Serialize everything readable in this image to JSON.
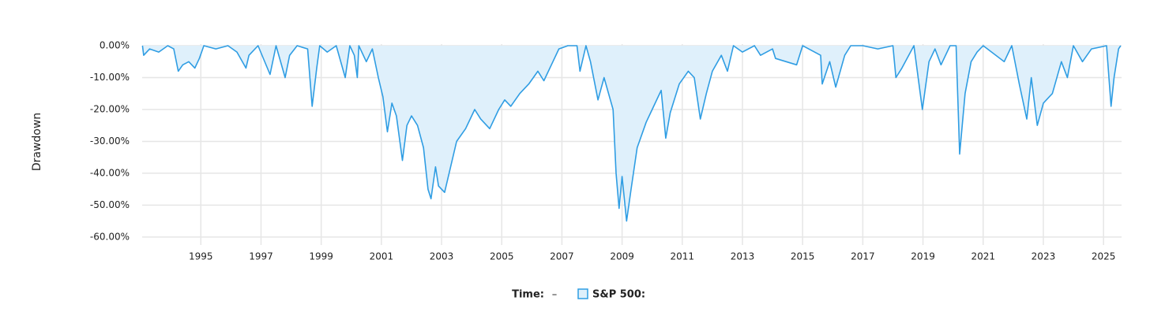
{
  "chart_data": {
    "type": "area",
    "y_label": "Drawdown",
    "legend_x_label": "Time:",
    "legend_x_value": "–",
    "grid": true,
    "xlim": [
      1993.05,
      2025.6
    ],
    "xticks": [
      1995,
      1997,
      1999,
      2001,
      2003,
      2005,
      2007,
      2009,
      2011,
      2013,
      2015,
      2017,
      2019,
      2021,
      2023,
      2025
    ],
    "ylim": [
      -62.5,
      0.5
    ],
    "yticks": [
      {
        "value": 0,
        "label": "0.00%"
      },
      {
        "value": -10,
        "label": "-10.00%"
      },
      {
        "value": -20,
        "label": "-20.00%"
      },
      {
        "value": -30,
        "label": "-30.00%"
      },
      {
        "value": -40,
        "label": "-40.00%"
      },
      {
        "value": -50,
        "label": "-50.00%"
      },
      {
        "value": -60,
        "label": "-60.00%"
      }
    ],
    "x": [
      1993.06,
      1993.1,
      1993.3,
      1993.6,
      1993.9,
      1994.1,
      1994.25,
      1994.4,
      1994.6,
      1994.8,
      1994.95,
      1995.1,
      1995.5,
      1995.9,
      1996.2,
      1996.5,
      1996.6,
      1996.9,
      1997.3,
      1997.5,
      1997.8,
      1997.95,
      1998.2,
      1998.55,
      1998.7,
      1998.85,
      1998.95,
      1999.2,
      1999.5,
      1999.8,
      1999.95,
      2000.1,
      2000.2,
      2000.25,
      2000.5,
      2000.7,
      2000.9,
      2001.05,
      2001.2,
      2001.35,
      2001.5,
      2001.7,
      2001.85,
      2002.0,
      2002.2,
      2002.4,
      2002.55,
      2002.65,
      2002.8,
      2002.9,
      2003.1,
      2003.25,
      2003.5,
      2003.8,
      2004.1,
      2004.3,
      2004.6,
      2004.9,
      2005.1,
      2005.3,
      2005.6,
      2005.9,
      2006.2,
      2006.4,
      2006.7,
      2006.9,
      2007.2,
      2007.5,
      2007.6,
      2007.8,
      2007.95,
      2008.2,
      2008.4,
      2008.7,
      2008.8,
      2008.9,
      2009.0,
      2009.15,
      2009.3,
      2009.5,
      2009.8,
      2010.0,
      2010.3,
      2010.45,
      2010.6,
      2010.9,
      2011.2,
      2011.4,
      2011.6,
      2011.8,
      2012.0,
      2012.3,
      2012.5,
      2012.7,
      2013.0,
      2013.4,
      2013.6,
      2014.0,
      2014.1,
      2014.8,
      2015.0,
      2015.6,
      2015.65,
      2015.9,
      2016.1,
      2016.4,
      2016.6,
      2017.0,
      2017.5,
      2018.0,
      2018.1,
      2018.3,
      2018.7,
      2018.98,
      2019.2,
      2019.4,
      2019.6,
      2019.9,
      2020.1,
      2020.22,
      2020.4,
      2020.6,
      2020.8,
      2021.0,
      2021.7,
      2021.95,
      2022.2,
      2022.45,
      2022.6,
      2022.8,
      2023.0,
      2023.3,
      2023.6,
      2023.8,
      2024.0,
      2024.3,
      2024.6,
      2025.1,
      2025.25,
      2025.35,
      2025.5,
      2025.57
    ],
    "series": [
      {
        "name": "S&P 500:",
        "color": "#2f9de3",
        "fill": "#dff0fb",
        "values": [
          0,
          -3,
          -1,
          -2,
          0,
          -1,
          -8,
          -6,
          -5,
          -7,
          -4,
          0,
          -1,
          0,
          -2,
          -7,
          -3,
          0,
          -9,
          0,
          -10,
          -3,
          0,
          -1,
          -19,
          -7,
          0,
          -2,
          0,
          -10,
          0,
          -3,
          -10,
          0,
          -5,
          -1,
          -10,
          -16,
          -27,
          -18,
          -22,
          -36,
          -25,
          -22,
          -25,
          -32,
          -45,
          -48,
          -38,
          -44,
          -46,
          -40,
          -30,
          -26,
          -20,
          -23,
          -26,
          -20,
          -17,
          -19,
          -15,
          -12,
          -8,
          -11,
          -5,
          -1,
          0,
          0,
          -8,
          0,
          -5,
          -17,
          -10,
          -20,
          -40,
          -51,
          -41,
          -55,
          -45,
          -32,
          -24,
          -20,
          -14,
          -29,
          -21,
          -12,
          -8,
          -10,
          -23,
          -15,
          -8,
          -3,
          -8,
          0,
          -2,
          0,
          -3,
          -1,
          -4,
          -6,
          0,
          -3,
          -12,
          -5,
          -13,
          -3,
          0,
          0,
          -1,
          0,
          -10,
          -7,
          0,
          -20,
          -5,
          -1,
          -6,
          0,
          0,
          -34,
          -15,
          -5,
          -2,
          0,
          -5,
          0,
          -12,
          -23,
          -10,
          -25,
          -18,
          -15,
          -5,
          -10,
          0,
          -5,
          -1,
          0,
          -19,
          -10,
          -1,
          0
        ]
      }
    ]
  }
}
